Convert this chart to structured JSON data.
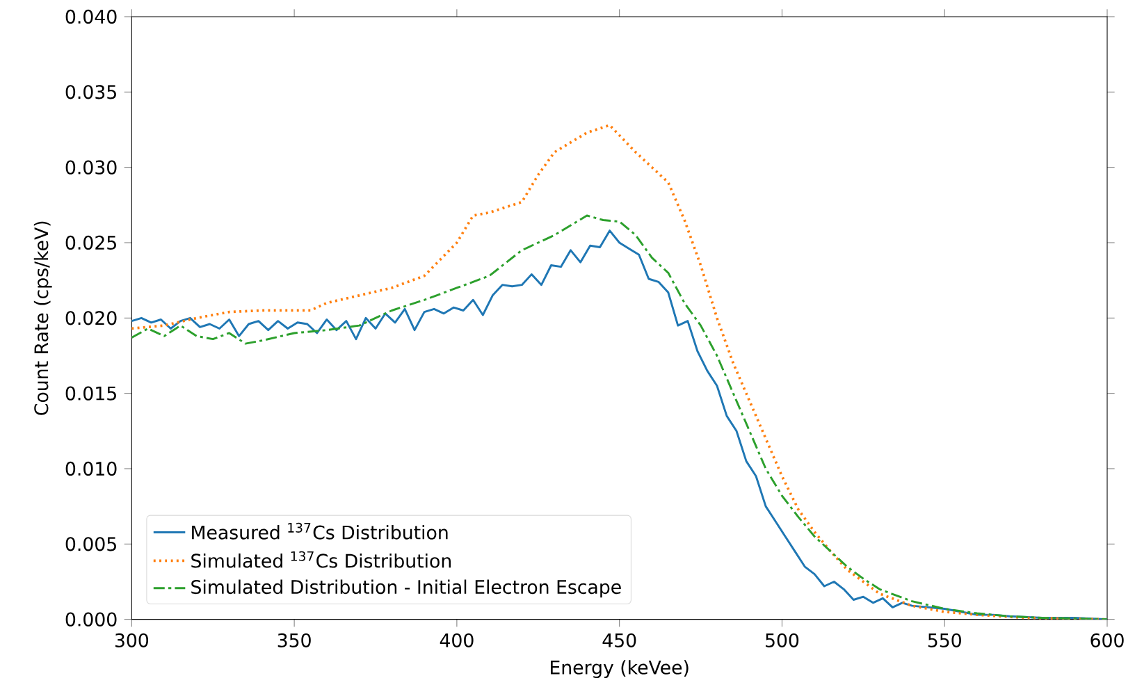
{
  "chart_data": {
    "type": "line",
    "xlabel": "Energy (keVee)",
    "ylabel": "Count Rate (cps/keV)",
    "xlim": [
      300,
      600
    ],
    "ylim": [
      0,
      0.04
    ],
    "xticks": [
      300,
      350,
      400,
      450,
      500,
      550,
      600
    ],
    "yticks": [
      {
        "value": 0,
        "label": "0.000"
      },
      {
        "value": 0.005,
        "label": "0.005"
      },
      {
        "value": 0.01,
        "label": "0.010"
      },
      {
        "value": 0.015,
        "label": "0.015"
      },
      {
        "value": 0.02,
        "label": "0.020"
      },
      {
        "value": 0.025,
        "label": "0.025"
      },
      {
        "value": 0.03,
        "label": "0.030"
      },
      {
        "value": 0.035,
        "label": "0.035"
      },
      {
        "value": 0.04,
        "label": "0.040"
      }
    ],
    "legend": "bottom left",
    "grid": false,
    "series": [
      {
        "name": "Measured $^{137}$Cs Distribution",
        "color": "#1f77b4",
        "line_style": "solid",
        "x": [
          300,
          303,
          306,
          309,
          312,
          315,
          318,
          321,
          324,
          327,
          330,
          333,
          336,
          339,
          342,
          345,
          348,
          351,
          354,
          357,
          360,
          363,
          366,
          369,
          372,
          375,
          378,
          381,
          384,
          387,
          390,
          393,
          396,
          399,
          402,
          405,
          408,
          411,
          414,
          417,
          420,
          423,
          426,
          429,
          432,
          435,
          438,
          441,
          444,
          447,
          450,
          453,
          456,
          459,
          462,
          465,
          468,
          471,
          474,
          477,
          480,
          483,
          486,
          489,
          492,
          495,
          498,
          501,
          504,
          507,
          510,
          513,
          516,
          519,
          522,
          525,
          528,
          531,
          534,
          537,
          540,
          545,
          550,
          555,
          560,
          565,
          570,
          580,
          590,
          600
        ],
        "values": [
          0.0198,
          0.02,
          0.0197,
          0.0199,
          0.0193,
          0.0198,
          0.02,
          0.0194,
          0.0196,
          0.0193,
          0.0199,
          0.0188,
          0.0196,
          0.0198,
          0.0192,
          0.0198,
          0.0193,
          0.0197,
          0.0196,
          0.019,
          0.0199,
          0.0192,
          0.0198,
          0.0186,
          0.02,
          0.0193,
          0.0203,
          0.0197,
          0.0206,
          0.0192,
          0.0204,
          0.0206,
          0.0203,
          0.0207,
          0.0205,
          0.0212,
          0.0202,
          0.0215,
          0.0222,
          0.0221,
          0.0222,
          0.0229,
          0.0222,
          0.0235,
          0.0234,
          0.0245,
          0.0237,
          0.0248,
          0.0247,
          0.0258,
          0.025,
          0.0246,
          0.0242,
          0.0226,
          0.0224,
          0.0217,
          0.0195,
          0.0198,
          0.0178,
          0.0165,
          0.0155,
          0.0135,
          0.0125,
          0.0105,
          0.0095,
          0.0075,
          0.0065,
          0.0055,
          0.0045,
          0.0035,
          0.003,
          0.0022,
          0.0025,
          0.002,
          0.0013,
          0.0015,
          0.0011,
          0.0014,
          0.0008,
          0.0011,
          0.0009,
          0.0008,
          0.0007,
          0.0005,
          0.0003,
          0.0003,
          0.0002,
          0.0001,
          0.0001,
          0.0
        ]
      },
      {
        "name": "Simulated $^{137}$Cs Distribution",
        "color": "#ff7f0e",
        "line_style": "dotted",
        "x": [
          300,
          310,
          320,
          330,
          340,
          350,
          355,
          360,
          370,
          380,
          390,
          400,
          405,
          410,
          420,
          425,
          430,
          440,
          447,
          455,
          465,
          470,
          475,
          480,
          485,
          490,
          495,
          500,
          505,
          510,
          515,
          520,
          525,
          530,
          540,
          550,
          560,
          575,
          600
        ],
        "values": [
          0.0193,
          0.0195,
          0.02,
          0.0204,
          0.0205,
          0.0205,
          0.0205,
          0.021,
          0.0215,
          0.022,
          0.0228,
          0.025,
          0.0268,
          0.027,
          0.0277,
          0.0295,
          0.031,
          0.0323,
          0.0328,
          0.031,
          0.029,
          0.0265,
          0.0235,
          0.02,
          0.017,
          0.0145,
          0.012,
          0.0095,
          0.0073,
          0.0058,
          0.0045,
          0.0033,
          0.0025,
          0.0017,
          0.0009,
          0.0005,
          0.0003,
          0.0001,
          0.0
        ]
      },
      {
        "name": "Simulated Distribution - Initial Electron Escape",
        "color": "#2ca02c",
        "line_style": "dashdotted",
        "x": [
          300,
          305,
          310,
          315,
          320,
          325,
          330,
          335,
          340,
          350,
          360,
          370,
          380,
          390,
          400,
          410,
          420,
          430,
          440,
          445,
          450,
          455,
          460,
          465,
          470,
          475,
          480,
          485,
          490,
          495,
          500,
          505,
          510,
          515,
          520,
          525,
          530,
          540,
          550,
          560,
          570,
          580,
          600
        ],
        "values": [
          0.0187,
          0.0193,
          0.0188,
          0.0195,
          0.0188,
          0.0186,
          0.019,
          0.0183,
          0.0185,
          0.019,
          0.0192,
          0.0195,
          0.0205,
          0.0212,
          0.022,
          0.0228,
          0.0245,
          0.0255,
          0.0268,
          0.0265,
          0.0264,
          0.0255,
          0.024,
          0.023,
          0.021,
          0.0195,
          0.0175,
          0.015,
          0.0125,
          0.01,
          0.0082,
          0.0068,
          0.0055,
          0.0045,
          0.0035,
          0.0027,
          0.002,
          0.0012,
          0.0007,
          0.0004,
          0.0002,
          0.0001,
          0.0
        ]
      }
    ]
  }
}
